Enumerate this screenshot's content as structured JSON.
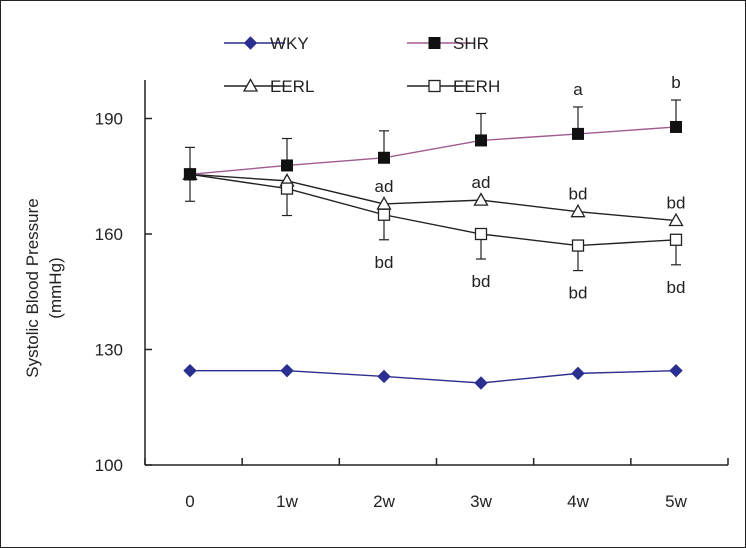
{
  "chart_data": {
    "type": "line",
    "title": "",
    "xlabel": "",
    "ylabel": "Systolic Blood Pressure",
    "ylabel_unit": "(mmHg)",
    "categories": [
      "0",
      "1w",
      "2w",
      "3w",
      "4w",
      "5w"
    ],
    "ylim": [
      100,
      200
    ],
    "yticks": [
      100,
      130,
      160,
      190
    ],
    "grid": false,
    "legend_position": "top",
    "series": [
      {
        "name": "WKY",
        "marker": "diamond",
        "color": "#2b2f8f",
        "values": [
          124.5,
          124.5,
          123.0,
          121.3,
          123.8,
          124.5
        ],
        "error": [],
        "labels": []
      },
      {
        "name": "SHR",
        "marker": "square-filled",
        "color": "#a05b8f",
        "values": [
          175.5,
          177.8,
          179.8,
          184.3,
          186.0,
          187.8
        ],
        "error": [
          7,
          7,
          7,
          7,
          7,
          7
        ],
        "labels": [
          "",
          "",
          "",
          "",
          "a",
          "b"
        ]
      },
      {
        "name": "EERL",
        "marker": "triangle-open",
        "color": "#222222",
        "values": [
          175.5,
          173.8,
          167.8,
          168.8,
          165.8,
          163.5
        ],
        "error": [],
        "labels": [
          "",
          "",
          "ad",
          "ad",
          "bd",
          "bd"
        ]
      },
      {
        "name": "EERH",
        "marker": "square-open",
        "color": "#222222",
        "values": [
          175.5,
          171.8,
          165.0,
          160.0,
          157.0,
          158.5
        ],
        "error": [
          7,
          7,
          6.5,
          6.5,
          6.5,
          6.5
        ],
        "labels": [
          "",
          "",
          "bd",
          "bd",
          "bd",
          "bd"
        ]
      }
    ]
  }
}
